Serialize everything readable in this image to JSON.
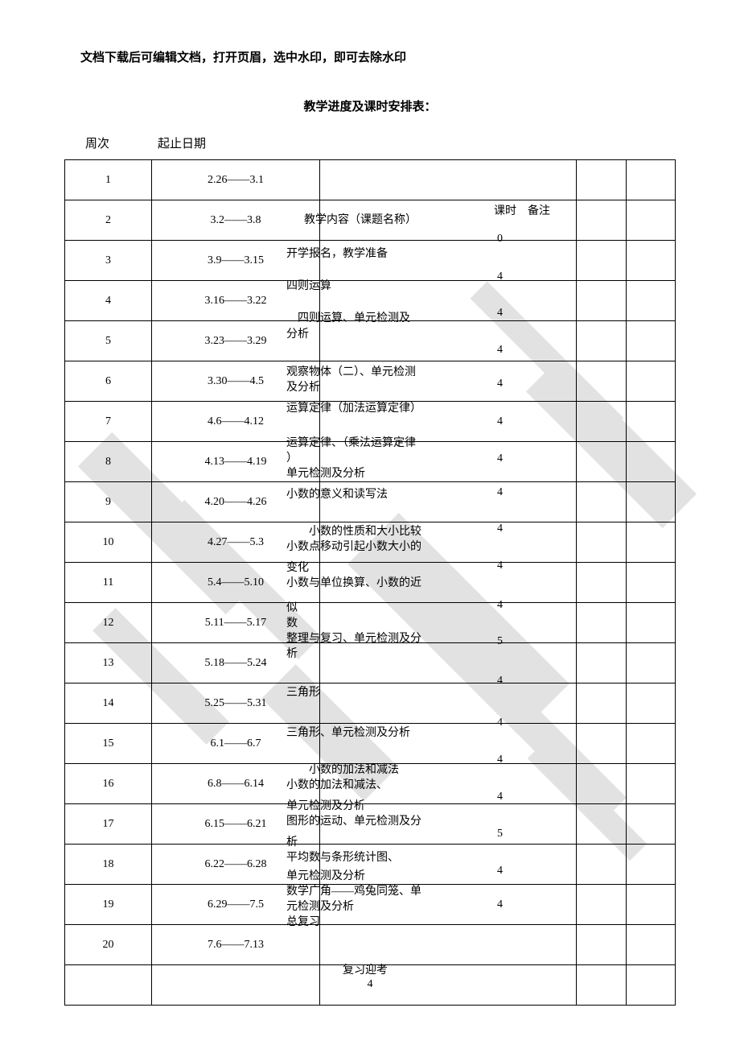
{
  "headerNote": "文档下载后可编辑文档，打开页眉，选中水印，即可去除水印",
  "title": "教学进度及课时安排表：",
  "colHeaders": {
    "week": "周次",
    "date": "起止日期"
  },
  "floatHeaders": {
    "topic": "教学内容（课题名称）",
    "hours": "课时",
    "note": "备注"
  },
  "rows": [
    {
      "week": "1",
      "date": "2.26——3.1"
    },
    {
      "week": "2",
      "date": "3.2——3.8"
    },
    {
      "week": "3",
      "date": "3.9——3.15"
    },
    {
      "week": "4",
      "date": "3.16——3.22"
    },
    {
      "week": "5",
      "date": "3.23——3.29"
    },
    {
      "week": "6",
      "date": "3.30——4.5"
    },
    {
      "week": "7",
      "date": "4.6——4.12"
    },
    {
      "week": "8",
      "date": "4.13——4.19"
    },
    {
      "week": "9",
      "date": "4.20——4.26"
    },
    {
      "week": "10",
      "date": "4.27——5.3"
    },
    {
      "week": "11",
      "date": "5.4——5.10"
    },
    {
      "week": "12",
      "date": "5.11——5.17"
    },
    {
      "week": "13",
      "date": "5.18——5.24"
    },
    {
      "week": "14",
      "date": "5.25——5.31"
    },
    {
      "week": "15",
      "date": "6.1——6.7"
    },
    {
      "week": "16",
      "date": "6.8——6.14"
    },
    {
      "week": "17",
      "date": "6.15——6.21"
    },
    {
      "week": "18",
      "date": "6.22——6.28"
    },
    {
      "week": "19",
      "date": "6.29——7.5"
    },
    {
      "week": "20",
      "date": "7.6——7.13"
    },
    {
      "week": "",
      "date": ""
    }
  ],
  "topics": [
    "开学报名，教学准备",
    "四则运算",
    "四则运算、单元检测及",
    "分析",
    "观察物体（二）、单元检测",
    "及分析",
    "运算定律（加法运算定律）",
    "运算定律、（乘法运算定律",
    "）",
    "单元检测及分析",
    "小数的意义和读写法",
    "小数的性质和大小比较",
    "小数点移动引起小数大小的",
    "变化",
    "小数与单位换算、小数的近",
    "似",
    "数",
    "整理与复习、单元检测及分",
    "析",
    "三角形",
    "三角形、单元检测及分析",
    "小数的加法和减法",
    "小数的加法和减法、",
    "单元检测及分析",
    "图形的运动、单元检测及分",
    "析",
    "平均数与条形统计图、",
    "单元检测及分析",
    "数学广角——鸡兔同笼、单",
    "元检测及分析",
    "总复习",
    "复习迎考"
  ],
  "hoursList": [
    "0",
    "4",
    "4",
    "4",
    "4",
    "4",
    "4",
    "4",
    "4",
    "4",
    "4",
    "5",
    "4",
    "4",
    "4",
    "4",
    "5",
    "4",
    "4"
  ],
  "pageNumber": "4",
  "layout": {
    "topicColLeft": 356,
    "topicStartTop": 262,
    "hoursColLeft": 618,
    "floatHeaderTop": 251,
    "floatHoursLeft": 614,
    "floatNoteLeft": 656
  }
}
